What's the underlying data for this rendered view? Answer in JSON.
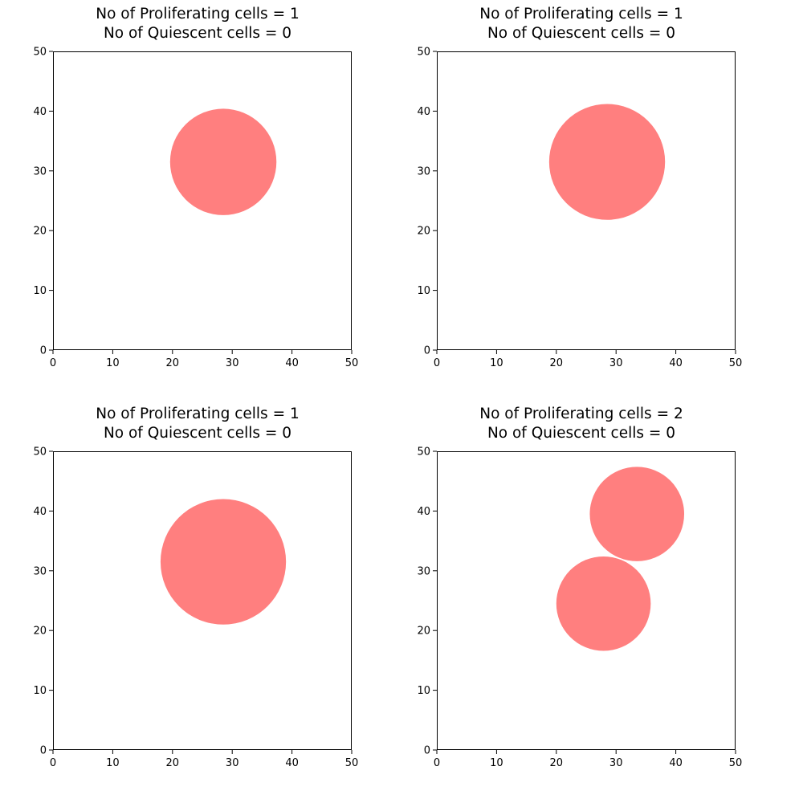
{
  "figure": {
    "background": "#ffffff",
    "cell_color": "#ff7f7f"
  },
  "chart_data": [
    {
      "type": "scatter",
      "title_lines": [
        "No of Proliferating cells = 1",
        "No of Quiescent cells = 0"
      ],
      "xlim": [
        0,
        50
      ],
      "ylim": [
        0,
        50
      ],
      "xticks": [
        0,
        10,
        20,
        30,
        40,
        50
      ],
      "yticks": [
        0,
        10,
        20,
        30,
        40,
        50
      ],
      "grid": false,
      "cells": [
        {
          "x": 28.5,
          "y": 31.5,
          "r": 8.9
        }
      ]
    },
    {
      "type": "scatter",
      "title_lines": [
        "No of Proliferating cells = 1",
        "No of Quiescent cells = 0"
      ],
      "xlim": [
        0,
        50
      ],
      "ylim": [
        0,
        50
      ],
      "xticks": [
        0,
        10,
        20,
        30,
        40,
        50
      ],
      "yticks": [
        0,
        10,
        20,
        30,
        40,
        50
      ],
      "grid": false,
      "cells": [
        {
          "x": 28.5,
          "y": 31.5,
          "r": 9.7
        }
      ]
    },
    {
      "type": "scatter",
      "title_lines": [
        "No of Proliferating cells = 1",
        "No of Quiescent cells = 0"
      ],
      "xlim": [
        0,
        50
      ],
      "ylim": [
        0,
        50
      ],
      "xticks": [
        0,
        10,
        20,
        30,
        40,
        50
      ],
      "yticks": [
        0,
        10,
        20,
        30,
        40,
        50
      ],
      "grid": false,
      "cells": [
        {
          "x": 28.5,
          "y": 31.5,
          "r": 10.5
        }
      ]
    },
    {
      "type": "scatter",
      "title_lines": [
        "No of Proliferating cells = 2",
        "No of Quiescent cells = 0"
      ],
      "xlim": [
        0,
        50
      ],
      "ylim": [
        0,
        50
      ],
      "xticks": [
        0,
        10,
        20,
        30,
        40,
        50
      ],
      "yticks": [
        0,
        10,
        20,
        30,
        40,
        50
      ],
      "grid": false,
      "cells": [
        {
          "x": 33.5,
          "y": 39.5,
          "r": 7.9
        },
        {
          "x": 27.9,
          "y": 24.5,
          "r": 7.9
        }
      ]
    }
  ]
}
